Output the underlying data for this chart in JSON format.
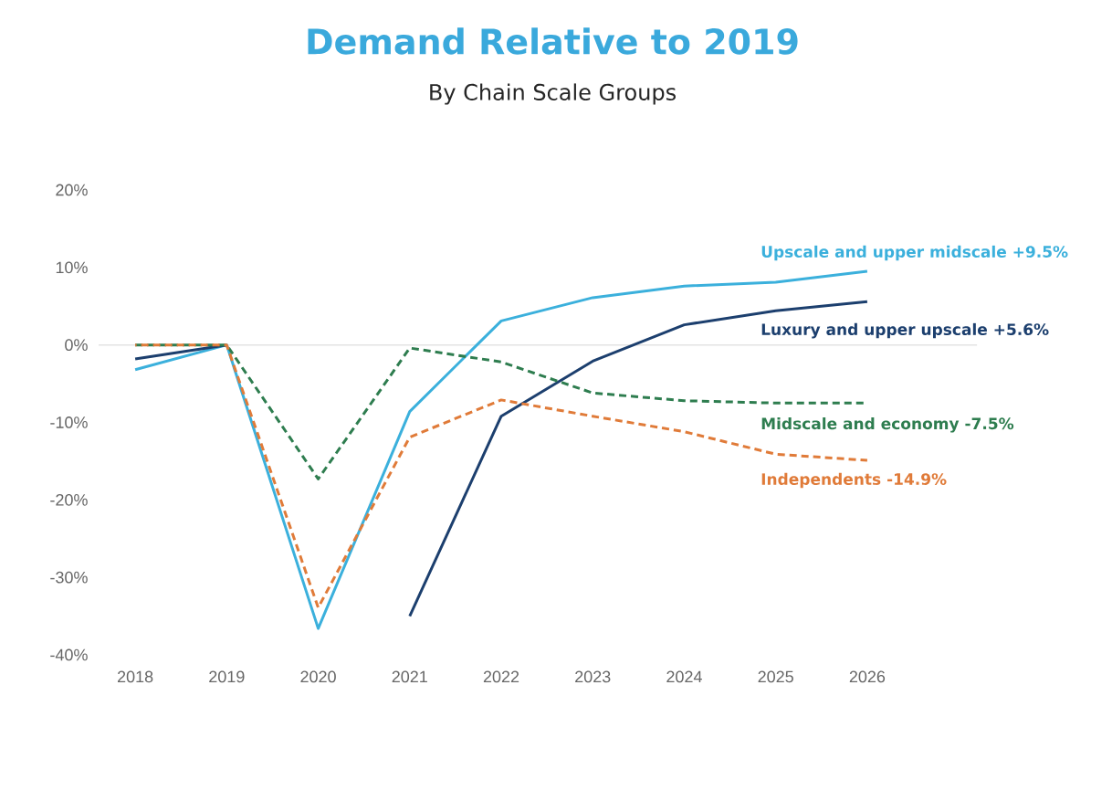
{
  "chart_data": {
    "type": "line",
    "title": "Demand Relative to 2019",
    "subtitle": "By Chain Scale Groups",
    "categories": [
      "2018",
      "2019",
      "2020",
      "2021",
      "2022",
      "2023",
      "2024",
      "2025",
      "2026"
    ],
    "series": [
      {
        "name": "Upscale and upper midscale +9.5%",
        "color": "#3bb0dc",
        "line_style": "solid",
        "values": [
          -3.2,
          0,
          -36.6,
          -8.6,
          3.1,
          6.1,
          7.6,
          8.1,
          9.5
        ]
      },
      {
        "name": "Luxury and upper upscale +5.6%",
        "color": "#1c3f6e",
        "line_style": "solid",
        "values": [
          -1.8,
          0,
          null,
          -35,
          -9.2,
          -2.1,
          2.6,
          4.4,
          5.6
        ]
      },
      {
        "name": "Midscale and economy -7.5%",
        "color": "#2e7d4f",
        "line_style": "dashed",
        "values": [
          0,
          0,
          -17.3,
          -0.4,
          -2.2,
          -6.2,
          -7.2,
          -7.5,
          -7.5
        ]
      },
      {
        "name": "Independents -14.9%",
        "color": "#e07b39",
        "line_style": "dashed",
        "values": [
          0,
          0,
          -33.9,
          -11.9,
          -7.1,
          -9.2,
          -11.2,
          -14.1,
          -14.9
        ]
      }
    ],
    "ylim": [
      -40,
      20
    ],
    "yticks": [
      {
        "value": -40,
        "label": "-40%"
      },
      {
        "value": -30,
        "label": "-30%"
      },
      {
        "value": -20,
        "label": "-20%"
      },
      {
        "value": -10,
        "label": "-10%"
      },
      {
        "value": 0,
        "label": "0%"
      },
      {
        "value": 10,
        "label": "10%"
      },
      {
        "value": 20,
        "label": "20%"
      }
    ],
    "ref_lines": [
      {
        "axis": "y",
        "value": 0,
        "color": "#e3e3e3"
      }
    ]
  }
}
